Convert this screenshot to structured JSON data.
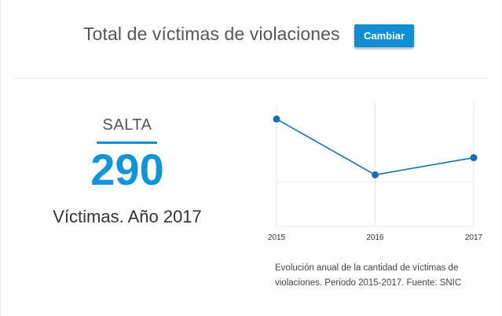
{
  "header": {
    "title": "Total de víctimas de violaciones",
    "change_label": "Cambiar"
  },
  "summary": {
    "region": "SALTA",
    "value": "290",
    "caption": "Víctimas. Año 2017"
  },
  "chart_note": "Evolución anual de la cantidad de víctimas de violaciones. Periodo 2015-2017. Fuente: SNIC",
  "colors": {
    "accent": "#0f8ed3",
    "line": "#1a6fb0",
    "value": "#1294d6"
  },
  "chart_data": {
    "type": "line",
    "x": [
      "2015",
      "2016",
      "2017"
    ],
    "series": [
      {
        "values": [
          335,
          270,
          290
        ]
      }
    ],
    "ylim": [
      210,
      350
    ],
    "grid": true,
    "title": "",
    "xlabel": "",
    "ylabel": ""
  }
}
